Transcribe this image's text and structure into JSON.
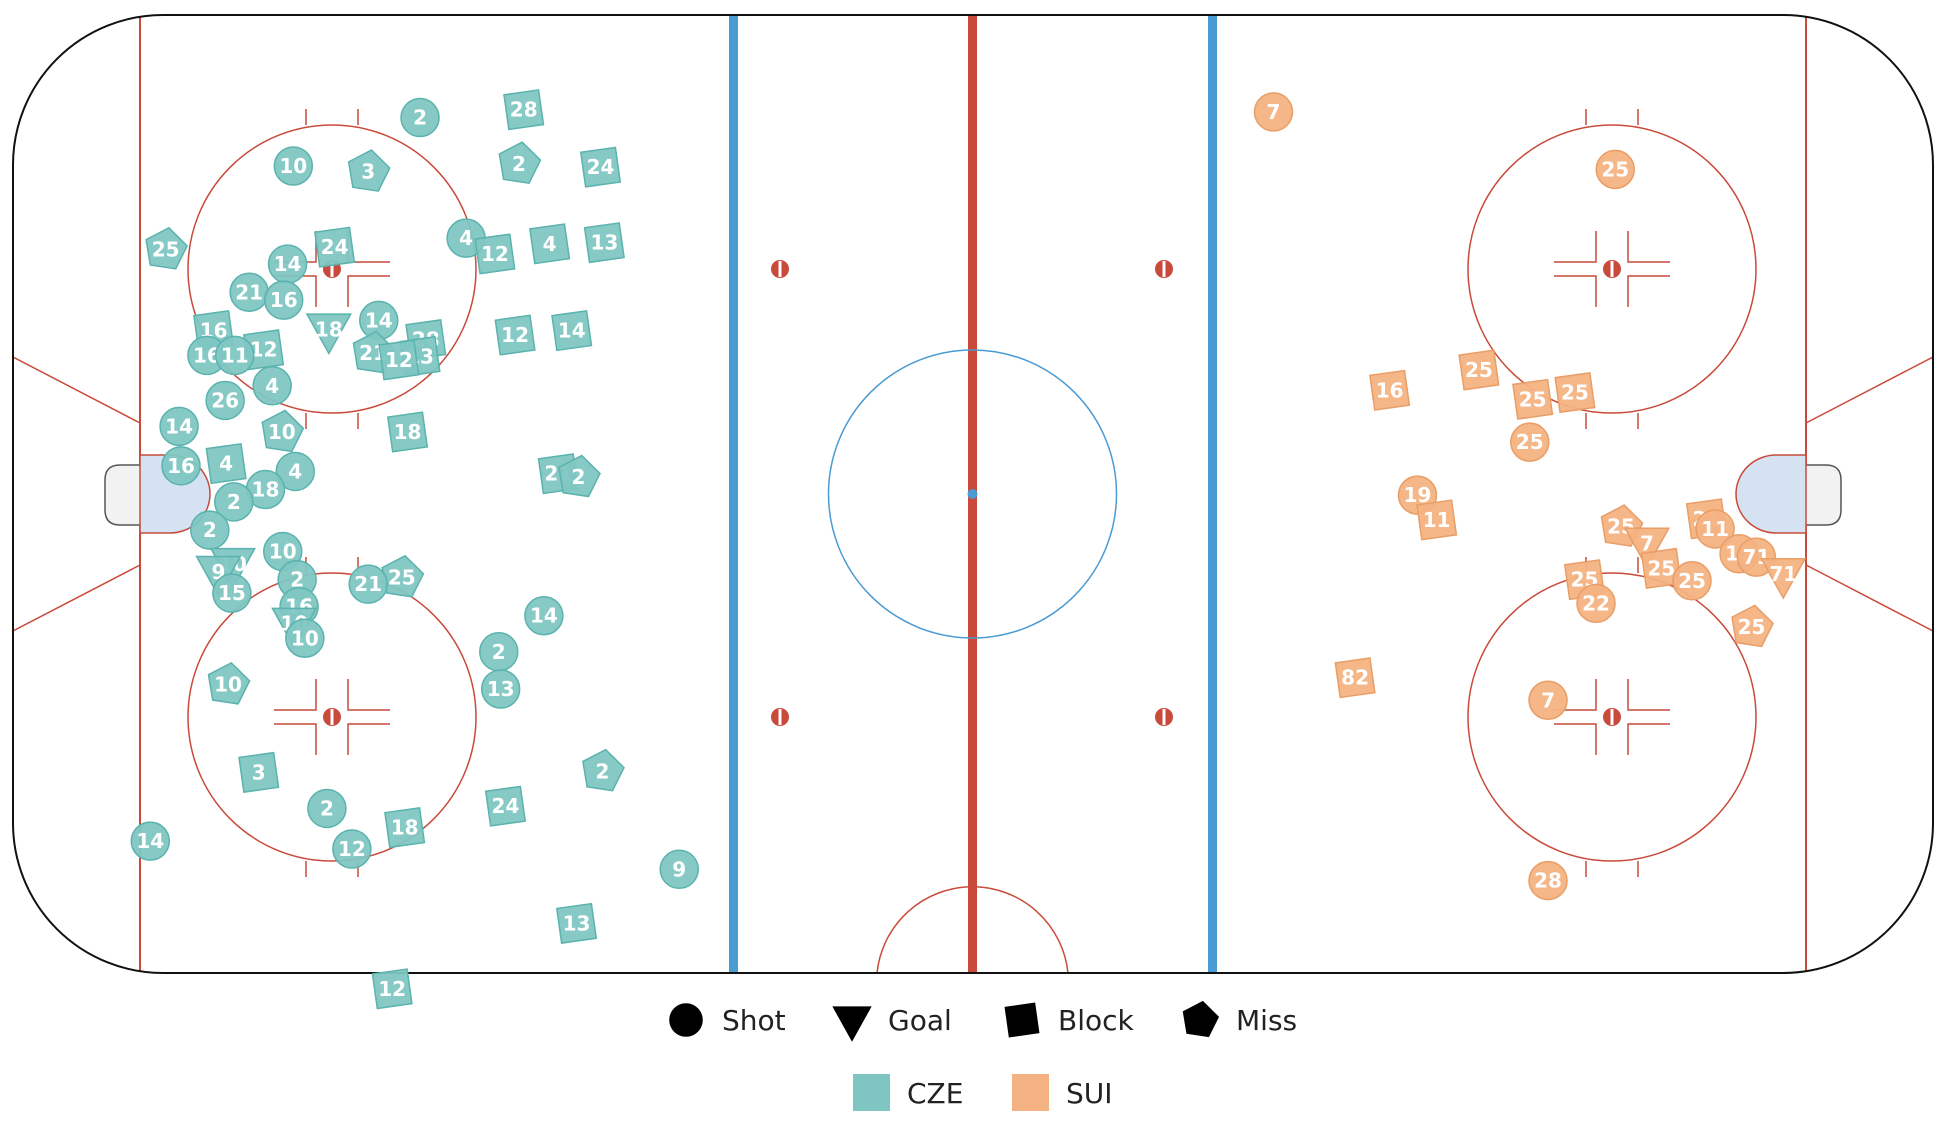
{
  "chart_data": {
    "type": "scatter",
    "title": "",
    "xlabel": "",
    "ylabel": "",
    "xlim": [
      0,
      200
    ],
    "ylim": [
      0,
      85
    ],
    "grid": false,
    "legend": {
      "placement": "bottom",
      "event_types": [
        {
          "name": "Shot",
          "shape": "circle"
        },
        {
          "name": "Goal",
          "shape": "triangle"
        },
        {
          "name": "Block",
          "shape": "square"
        },
        {
          "name": "Miss",
          "shape": "pentagon"
        }
      ],
      "teams": [
        {
          "name": "CZE",
          "color": "#7fc6c2"
        },
        {
          "name": "SUI",
          "color": "#f4b282"
        }
      ]
    },
    "series": [
      {
        "name": "CZE",
        "color": "#7fc6c2",
        "stroke": "#5ab3ae",
        "points": [
          {
            "x": 42.4,
            "y": 75.9,
            "num": "2",
            "type": "Shot"
          },
          {
            "x": 53.2,
            "y": 76.6,
            "num": "28",
            "type": "Block"
          },
          {
            "x": 29.2,
            "y": 71.6,
            "num": "10",
            "type": "Shot"
          },
          {
            "x": 37.0,
            "y": 71.1,
            "num": "3",
            "type": "Miss"
          },
          {
            "x": 52.7,
            "y": 71.8,
            "num": "2",
            "type": "Miss"
          },
          {
            "x": 61.2,
            "y": 71.5,
            "num": "24",
            "type": "Block"
          },
          {
            "x": 47.2,
            "y": 65.2,
            "num": "4",
            "type": "Shot"
          },
          {
            "x": 50.2,
            "y": 63.8,
            "num": "12",
            "type": "Block"
          },
          {
            "x": 55.9,
            "y": 64.7,
            "num": "4",
            "type": "Block"
          },
          {
            "x": 61.6,
            "y": 64.8,
            "num": "13",
            "type": "Block"
          },
          {
            "x": 15.9,
            "y": 64.2,
            "num": "25",
            "type": "Miss"
          },
          {
            "x": 28.6,
            "y": 62.9,
            "num": "14",
            "type": "Shot"
          },
          {
            "x": 33.5,
            "y": 64.4,
            "num": "24",
            "type": "Block"
          },
          {
            "x": 24.6,
            "y": 60.4,
            "num": "21",
            "type": "Shot"
          },
          {
            "x": 28.2,
            "y": 59.7,
            "num": "16",
            "type": "Shot"
          },
          {
            "x": 20.9,
            "y": 57.0,
            "num": "16",
            "type": "Block"
          },
          {
            "x": 32.9,
            "y": 57.1,
            "num": "18",
            "type": "Goal"
          },
          {
            "x": 38.1,
            "y": 57.9,
            "num": "14",
            "type": "Shot"
          },
          {
            "x": 43.0,
            "y": 56.2,
            "num": "28",
            "type": "Block"
          },
          {
            "x": 52.3,
            "y": 56.6,
            "num": "12",
            "type": "Block"
          },
          {
            "x": 58.2,
            "y": 57.0,
            "num": "14",
            "type": "Block"
          },
          {
            "x": 26.1,
            "y": 55.3,
            "num": "12",
            "type": "Block"
          },
          {
            "x": 20.2,
            "y": 54.8,
            "num": "16",
            "type": "Shot"
          },
          {
            "x": 23.1,
            "y": 54.8,
            "num": "11",
            "type": "Shot"
          },
          {
            "x": 37.5,
            "y": 55.0,
            "num": "21",
            "type": "Miss"
          },
          {
            "x": 42.4,
            "y": 54.7,
            "num": "13",
            "type": "Block"
          },
          {
            "x": 40.2,
            "y": 54.4,
            "num": "12",
            "type": "Block"
          },
          {
            "x": 27.0,
            "y": 52.1,
            "num": "4",
            "type": "Shot"
          },
          {
            "x": 22.1,
            "y": 50.8,
            "num": "26",
            "type": "Shot"
          },
          {
            "x": 17.3,
            "y": 48.5,
            "num": "14",
            "type": "Shot"
          },
          {
            "x": 28.0,
            "y": 48.0,
            "num": "10",
            "type": "Miss"
          },
          {
            "x": 41.1,
            "y": 48.0,
            "num": "18",
            "type": "Block"
          },
          {
            "x": 17.5,
            "y": 45.0,
            "num": "16",
            "type": "Shot"
          },
          {
            "x": 22.2,
            "y": 45.2,
            "num": "4",
            "type": "Block"
          },
          {
            "x": 29.4,
            "y": 44.5,
            "num": "4",
            "type": "Shot"
          },
          {
            "x": 56.8,
            "y": 44.3,
            "num": "21",
            "type": "Block"
          },
          {
            "x": 58.9,
            "y": 44.0,
            "num": "2",
            "type": "Miss"
          },
          {
            "x": 26.3,
            "y": 42.9,
            "num": "18",
            "type": "Shot"
          },
          {
            "x": 23.0,
            "y": 41.8,
            "num": "2",
            "type": "Shot"
          },
          {
            "x": 20.5,
            "y": 39.3,
            "num": "2",
            "type": "Shot"
          },
          {
            "x": 28.1,
            "y": 37.4,
            "num": "10",
            "type": "Shot"
          },
          {
            "x": 22.9,
            "y": 36.3,
            "num": "10",
            "type": "Goal"
          },
          {
            "x": 21.4,
            "y": 35.6,
            "num": "9",
            "type": "Goal"
          },
          {
            "x": 29.6,
            "y": 34.9,
            "num": "2",
            "type": "Shot"
          },
          {
            "x": 40.5,
            "y": 35.1,
            "num": "25",
            "type": "Miss"
          },
          {
            "x": 37.0,
            "y": 34.5,
            "num": "21",
            "type": "Shot"
          },
          {
            "x": 22.8,
            "y": 33.7,
            "num": "15",
            "type": "Shot"
          },
          {
            "x": 29.8,
            "y": 32.5,
            "num": "16",
            "type": "Shot"
          },
          {
            "x": 55.3,
            "y": 31.7,
            "num": "14",
            "type": "Shot"
          },
          {
            "x": 29.3,
            "y": 31.0,
            "num": "10",
            "type": "Goal"
          },
          {
            "x": 30.4,
            "y": 29.7,
            "num": "10",
            "type": "Shot"
          },
          {
            "x": 50.6,
            "y": 28.5,
            "num": "2",
            "type": "Shot"
          },
          {
            "x": 22.4,
            "y": 25.6,
            "num": "10",
            "type": "Miss"
          },
          {
            "x": 50.8,
            "y": 25.2,
            "num": "13",
            "type": "Shot"
          },
          {
            "x": 25.6,
            "y": 17.8,
            "num": "3",
            "type": "Block"
          },
          {
            "x": 61.4,
            "y": 17.9,
            "num": "2",
            "type": "Miss"
          },
          {
            "x": 32.7,
            "y": 14.6,
            "num": "2",
            "type": "Shot"
          },
          {
            "x": 51.3,
            "y": 14.8,
            "num": "24",
            "type": "Block"
          },
          {
            "x": 40.8,
            "y": 12.9,
            "num": "18",
            "type": "Block"
          },
          {
            "x": 14.3,
            "y": 11.7,
            "num": "14",
            "type": "Shot"
          },
          {
            "x": 35.3,
            "y": 11.0,
            "num": "12",
            "type": "Shot"
          },
          {
            "x": 69.4,
            "y": 9.2,
            "num": "9",
            "type": "Shot"
          },
          {
            "x": 58.7,
            "y": 4.4,
            "num": "13",
            "type": "Block"
          },
          {
            "x": 39.5,
            "y": -1.4,
            "num": "12",
            "type": "Block"
          }
        ]
      },
      {
        "name": "SUI",
        "color": "#f4b282",
        "stroke": "#e99e66",
        "points": [
          {
            "x": 131.3,
            "y": 76.4,
            "num": "7",
            "type": "Shot"
          },
          {
            "x": 166.9,
            "y": 71.3,
            "num": "25",
            "type": "Shot"
          },
          {
            "x": 152.7,
            "y": 53.5,
            "num": "25",
            "type": "Block"
          },
          {
            "x": 143.4,
            "y": 51.7,
            "num": "16",
            "type": "Block"
          },
          {
            "x": 158.3,
            "y": 50.9,
            "num": "25",
            "type": "Block"
          },
          {
            "x": 162.7,
            "y": 51.5,
            "num": "25",
            "type": "Block"
          },
          {
            "x": 158.0,
            "y": 47.1,
            "num": "25",
            "type": "Shot"
          },
          {
            "x": 146.3,
            "y": 42.4,
            "num": "19",
            "type": "Shot"
          },
          {
            "x": 148.3,
            "y": 40.2,
            "num": "11",
            "type": "Block"
          },
          {
            "x": 176.4,
            "y": 40.3,
            "num": "21",
            "type": "Block"
          },
          {
            "x": 167.5,
            "y": 39.6,
            "num": "25",
            "type": "Miss"
          },
          {
            "x": 177.3,
            "y": 39.4,
            "num": "11",
            "type": "Shot"
          },
          {
            "x": 170.2,
            "y": 38.1,
            "num": "7",
            "type": "Goal"
          },
          {
            "x": 179.8,
            "y": 37.2,
            "num": "17",
            "type": "Shot"
          },
          {
            "x": 181.6,
            "y": 36.9,
            "num": "71",
            "type": "Shot"
          },
          {
            "x": 171.7,
            "y": 35.9,
            "num": "25",
            "type": "Block"
          },
          {
            "x": 184.4,
            "y": 35.4,
            "num": "71",
            "type": "Goal"
          },
          {
            "x": 163.7,
            "y": 34.9,
            "num": "25",
            "type": "Block"
          },
          {
            "x": 174.9,
            "y": 34.8,
            "num": "25",
            "type": "Shot"
          },
          {
            "x": 164.9,
            "y": 32.8,
            "num": "22",
            "type": "Shot"
          },
          {
            "x": 181.1,
            "y": 30.7,
            "num": "25",
            "type": "Miss"
          },
          {
            "x": 139.8,
            "y": 26.2,
            "num": "82",
            "type": "Block"
          },
          {
            "x": 159.9,
            "y": 24.2,
            "num": "7",
            "type": "Shot"
          },
          {
            "x": 159.9,
            "y": 8.2,
            "num": "28",
            "type": "Shot"
          }
        ]
      }
    ]
  }
}
